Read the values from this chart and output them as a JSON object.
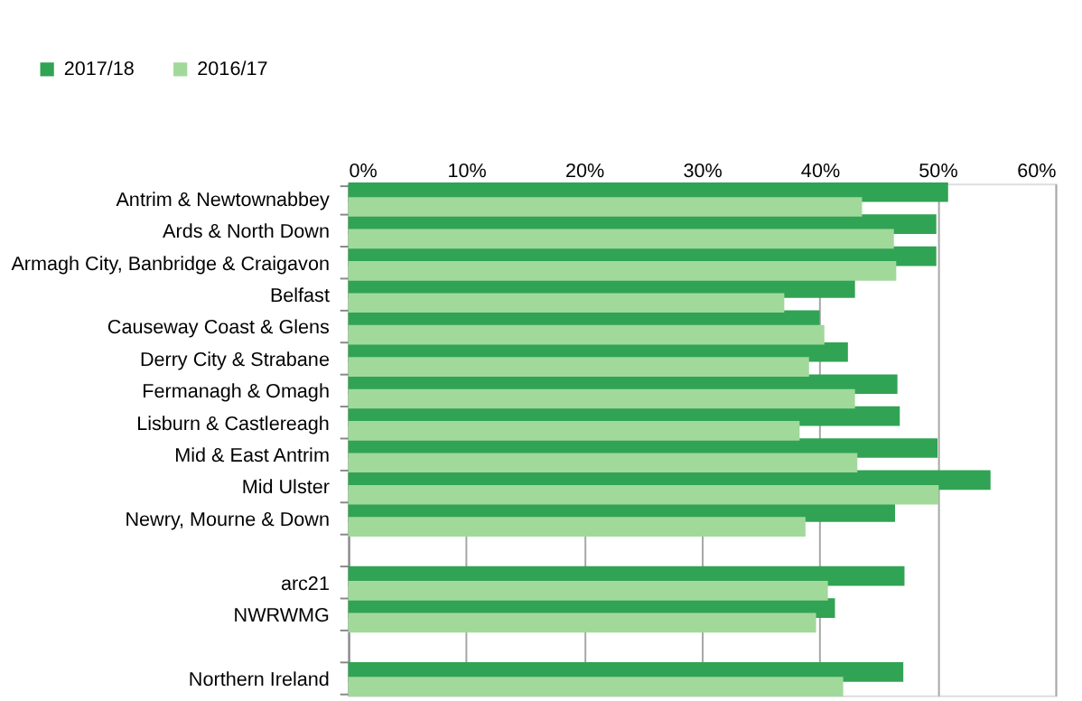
{
  "chart_data": {
    "type": "bar",
    "orientation": "horizontal",
    "categories": [
      "Antrim & Newtownabbey",
      "Ards & North Down",
      "Armagh City, Banbridge & Craigavon",
      "Belfast",
      "Causeway Coast & Glens",
      "Derry City & Strabane",
      "Fermanagh & Omagh",
      "Lisburn & Castlereagh",
      "Mid & East Antrim",
      "Mid Ulster",
      "Newry, Mourne & Down",
      null,
      "arc21",
      "NWRWMG",
      null,
      "Northern Ireland"
    ],
    "series": [
      {
        "name": "2017/18",
        "color": "#31a354",
        "values": [
          50.9,
          49.9,
          49.9,
          43.0,
          40.0,
          42.4,
          46.6,
          46.8,
          50.0,
          54.5,
          46.4,
          null,
          47.2,
          41.3,
          null,
          47.1
        ]
      },
      {
        "name": "2016/17",
        "color": "#a1d99b",
        "values": [
          43.6,
          46.3,
          46.5,
          37.0,
          40.4,
          39.1,
          43.0,
          38.3,
          43.2,
          50.1,
          38.8,
          null,
          40.7,
          39.7,
          null,
          42.0
        ]
      }
    ],
    "xlim": [
      0,
      60
    ],
    "xticks": [
      {
        "value": 0,
        "label": "0%"
      },
      {
        "value": 10,
        "label": "10%"
      },
      {
        "value": 20,
        "label": "20%"
      },
      {
        "value": 30,
        "label": "30%"
      },
      {
        "value": 40,
        "label": "40%"
      },
      {
        "value": 50,
        "label": "50%"
      },
      {
        "value": 60,
        "label": "60%"
      }
    ],
    "grid": "x",
    "legend": "top left"
  }
}
